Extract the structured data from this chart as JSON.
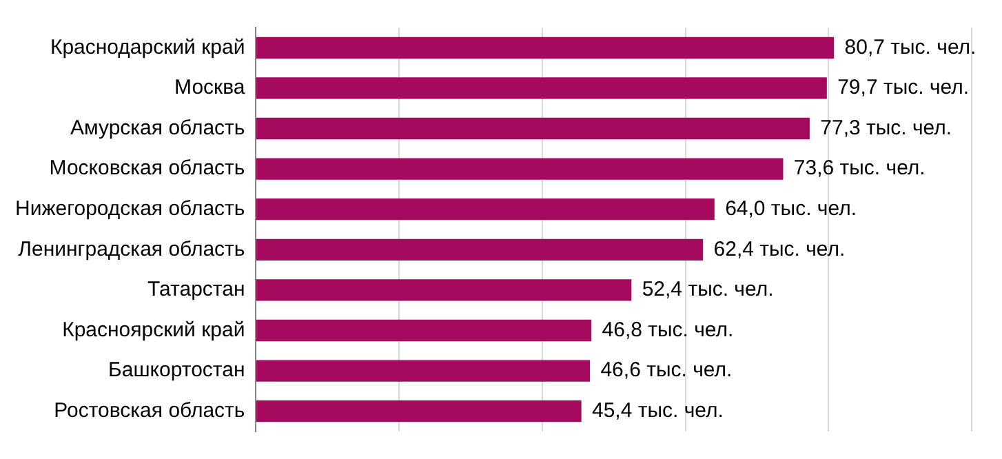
{
  "chart_data": {
    "type": "bar",
    "orientation": "horizontal",
    "categories": [
      "Краснодарский край",
      "Москва",
      "Амурская область",
      "Московская область",
      "Нижегородская область",
      "Ленинградская область",
      "Татарстан",
      "Красноярский край",
      "Башкортостан",
      "Ростовская область"
    ],
    "values": [
      80.7,
      79.7,
      77.3,
      73.6,
      64.0,
      62.4,
      52.4,
      46.8,
      46.6,
      45.4
    ],
    "value_labels": [
      "80,7 тыс. чел.",
      "79,7 тыс. чел.",
      "77,3 тыс. чел.",
      "73,6 тыс. чел.",
      "64,0 тыс. чел.",
      "62,4 тыс. чел.",
      "52,4 тыс. чел.",
      "46,8 тыс. чел.",
      "46,6 тыс. чел.",
      "45,4 тыс. чел."
    ],
    "color": "#a50a5e",
    "xlim": [
      0,
      100
    ],
    "xticks": [
      {
        "value": 0,
        "label": null
      },
      {
        "value": 20,
        "label": null
      },
      {
        "value": 40,
        "label": null
      },
      {
        "value": 60,
        "label": null
      },
      {
        "value": 80,
        "label": null
      },
      {
        "value": 100,
        "label": null
      }
    ],
    "grid": "x",
    "tick_labels": "y",
    "legend": false
  }
}
